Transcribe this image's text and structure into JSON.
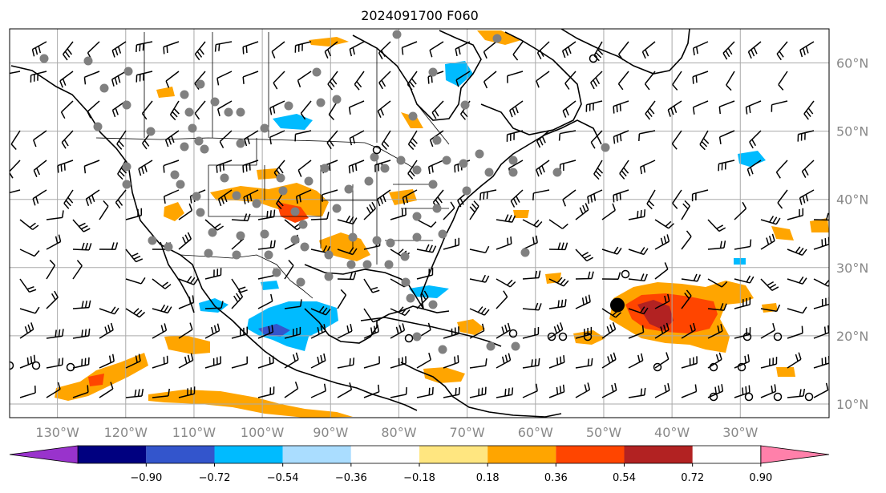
{
  "title": "2024091700 F060",
  "lon_labels": [
    "130°W",
    "120°W",
    "110°W",
    "100°W",
    "90°W",
    "80°W",
    "70°W",
    "60°W",
    "50°W",
    "40°W",
    "30°W"
  ],
  "lat_labels": [
    "60°N",
    "50°N",
    "40°N",
    "30°N",
    "20°N",
    "10°N"
  ],
  "colorbar": {
    "tick_labels": [
      "−0.90",
      "−0.72",
      "−0.54",
      "−0.36",
      "−0.18",
      "0.18",
      "0.36",
      "0.54",
      "0.72",
      "0.90"
    ],
    "colors": [
      "#9933cc",
      "#000080",
      "#3355cc",
      "#00bbff",
      "#aaddff",
      "#ffffff",
      "#ffe680",
      "#ffa500",
      "#ff4500",
      "#b22222",
      "#ff80aa"
    ]
  },
  "map": {
    "extent": {
      "lon_min": -137,
      "lon_max": -17,
      "lat_min": 8,
      "lat_max": 65
    },
    "storm_center": {
      "lon": -48,
      "lat": 24.5
    }
  }
}
